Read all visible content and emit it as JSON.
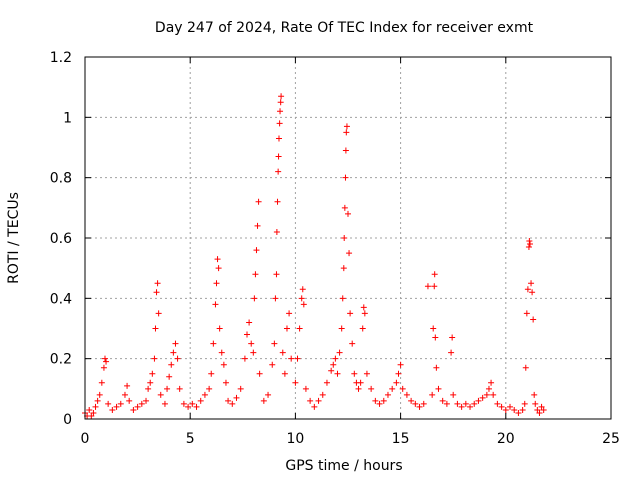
{
  "chart_data": {
    "type": "scatter",
    "title": "Day 247 of 2024, Rate Of TEC Index for receiver exmt",
    "xlabel": "GPS time / hours",
    "ylabel": "ROTI / TECUs",
    "xlim": [
      0,
      25
    ],
    "ylim": [
      0,
      1.2
    ],
    "x_ticks": [
      0,
      5,
      10,
      15,
      20,
      25
    ],
    "y_ticks": [
      0,
      0.2,
      0.4,
      0.6,
      0.8,
      1,
      1.2
    ],
    "x_tick_labels": [
      "0",
      "5",
      "10",
      "15",
      "20",
      "25"
    ],
    "y_tick_labels": [
      "0",
      "0.2",
      "0.4",
      "0.6",
      "0.8",
      "1",
      "1.2"
    ],
    "grid": true,
    "legend": "none",
    "marker": "plus",
    "color": "#ff0000",
    "series": [
      {
        "points": [
          [
            0.0,
            0.02
          ],
          [
            0.1,
            0.01
          ],
          [
            0.2,
            0.03
          ],
          [
            0.3,
            0.01
          ],
          [
            0.4,
            0.02
          ],
          [
            0.5,
            0.04
          ],
          [
            0.6,
            0.06
          ],
          [
            0.7,
            0.08
          ],
          [
            0.8,
            0.12
          ],
          [
            0.9,
            0.17
          ],
          [
            0.95,
            0.2
          ],
          [
            1.0,
            0.19
          ],
          [
            1.1,
            0.05
          ],
          [
            1.3,
            0.03
          ],
          [
            1.5,
            0.04
          ],
          [
            1.7,
            0.05
          ],
          [
            1.9,
            0.08
          ],
          [
            2.0,
            0.11
          ],
          [
            2.1,
            0.06
          ],
          [
            2.3,
            0.03
          ],
          [
            2.5,
            0.04
          ],
          [
            2.7,
            0.05
          ],
          [
            2.9,
            0.06
          ],
          [
            3.0,
            0.1
          ],
          [
            3.1,
            0.12
          ],
          [
            3.2,
            0.15
          ],
          [
            3.3,
            0.2
          ],
          [
            3.35,
            0.3
          ],
          [
            3.4,
            0.42
          ],
          [
            3.45,
            0.45
          ],
          [
            3.5,
            0.35
          ],
          [
            3.6,
            0.08
          ],
          [
            3.8,
            0.05
          ],
          [
            3.9,
            0.1
          ],
          [
            4.0,
            0.14
          ],
          [
            4.1,
            0.18
          ],
          [
            4.2,
            0.22
          ],
          [
            4.3,
            0.25
          ],
          [
            4.4,
            0.2
          ],
          [
            4.5,
            0.1
          ],
          [
            4.7,
            0.05
          ],
          [
            4.9,
            0.04
          ],
          [
            5.1,
            0.05
          ],
          [
            5.3,
            0.04
          ],
          [
            5.5,
            0.06
          ],
          [
            5.7,
            0.08
          ],
          [
            5.9,
            0.1
          ],
          [
            6.0,
            0.15
          ],
          [
            6.1,
            0.25
          ],
          [
            6.2,
            0.38
          ],
          [
            6.25,
            0.45
          ],
          [
            6.3,
            0.53
          ],
          [
            6.35,
            0.5
          ],
          [
            6.4,
            0.3
          ],
          [
            6.5,
            0.22
          ],
          [
            6.6,
            0.18
          ],
          [
            6.7,
            0.12
          ],
          [
            6.8,
            0.06
          ],
          [
            7.0,
            0.05
          ],
          [
            7.2,
            0.07
          ],
          [
            7.4,
            0.1
          ],
          [
            7.6,
            0.2
          ],
          [
            7.7,
            0.28
          ],
          [
            7.8,
            0.32
          ],
          [
            7.9,
            0.25
          ],
          [
            8.0,
            0.22
          ],
          [
            8.05,
            0.4
          ],
          [
            8.1,
            0.48
          ],
          [
            8.15,
            0.56
          ],
          [
            8.2,
            0.64
          ],
          [
            8.25,
            0.72
          ],
          [
            8.3,
            0.15
          ],
          [
            8.5,
            0.06
          ],
          [
            8.7,
            0.08
          ],
          [
            8.9,
            0.18
          ],
          [
            9.0,
            0.25
          ],
          [
            9.05,
            0.4
          ],
          [
            9.1,
            0.48
          ],
          [
            9.12,
            0.62
          ],
          [
            9.15,
            0.72
          ],
          [
            9.18,
            0.82
          ],
          [
            9.2,
            0.87
          ],
          [
            9.22,
            0.93
          ],
          [
            9.25,
            0.98
          ],
          [
            9.27,
            1.02
          ],
          [
            9.3,
            1.05
          ],
          [
            9.32,
            1.07
          ],
          [
            9.4,
            0.22
          ],
          [
            9.5,
            0.15
          ],
          [
            9.6,
            0.3
          ],
          [
            9.7,
            0.35
          ],
          [
            9.8,
            0.2
          ],
          [
            10.0,
            0.12
          ],
          [
            10.1,
            0.2
          ],
          [
            10.2,
            0.3
          ],
          [
            10.3,
            0.4
          ],
          [
            10.35,
            0.43
          ],
          [
            10.4,
            0.38
          ],
          [
            10.5,
            0.1
          ],
          [
            10.7,
            0.06
          ],
          [
            10.9,
            0.04
          ],
          [
            11.1,
            0.06
          ],
          [
            11.3,
            0.08
          ],
          [
            11.5,
            0.12
          ],
          [
            11.7,
            0.16
          ],
          [
            11.8,
            0.18
          ],
          [
            11.9,
            0.2
          ],
          [
            12.0,
            0.15
          ],
          [
            12.1,
            0.22
          ],
          [
            12.2,
            0.3
          ],
          [
            12.25,
            0.4
          ],
          [
            12.3,
            0.5
          ],
          [
            12.32,
            0.6
          ],
          [
            12.35,
            0.7
          ],
          [
            12.38,
            0.8
          ],
          [
            12.4,
            0.89
          ],
          [
            12.42,
            0.95
          ],
          [
            12.45,
            0.97
          ],
          [
            12.5,
            0.68
          ],
          [
            12.55,
            0.55
          ],
          [
            12.6,
            0.35
          ],
          [
            12.7,
            0.25
          ],
          [
            12.8,
            0.15
          ],
          [
            12.9,
            0.12
          ],
          [
            13.0,
            0.1
          ],
          [
            13.1,
            0.12
          ],
          [
            13.2,
            0.3
          ],
          [
            13.25,
            0.37
          ],
          [
            13.3,
            0.35
          ],
          [
            13.4,
            0.15
          ],
          [
            13.6,
            0.1
          ],
          [
            13.8,
            0.06
          ],
          [
            14.0,
            0.05
          ],
          [
            14.2,
            0.06
          ],
          [
            14.4,
            0.08
          ],
          [
            14.6,
            0.1
          ],
          [
            14.8,
            0.12
          ],
          [
            14.9,
            0.15
          ],
          [
            15.0,
            0.18
          ],
          [
            15.1,
            0.1
          ],
          [
            15.3,
            0.08
          ],
          [
            15.5,
            0.06
          ],
          [
            15.7,
            0.05
          ],
          [
            15.9,
            0.04
          ],
          [
            16.1,
            0.05
          ],
          [
            16.3,
            0.44
          ],
          [
            16.5,
            0.08
          ],
          [
            16.55,
            0.3
          ],
          [
            16.6,
            0.44
          ],
          [
            16.62,
            0.48
          ],
          [
            16.65,
            0.27
          ],
          [
            16.7,
            0.17
          ],
          [
            16.8,
            0.1
          ],
          [
            17.0,
            0.06
          ],
          [
            17.2,
            0.05
          ],
          [
            17.4,
            0.22
          ],
          [
            17.45,
            0.27
          ],
          [
            17.5,
            0.08
          ],
          [
            17.7,
            0.05
          ],
          [
            17.9,
            0.04
          ],
          [
            18.1,
            0.05
          ],
          [
            18.3,
            0.04
          ],
          [
            18.5,
            0.05
          ],
          [
            18.7,
            0.06
          ],
          [
            18.9,
            0.07
          ],
          [
            19.1,
            0.08
          ],
          [
            19.2,
            0.1
          ],
          [
            19.3,
            0.12
          ],
          [
            19.4,
            0.08
          ],
          [
            19.6,
            0.05
          ],
          [
            19.8,
            0.04
          ],
          [
            20.0,
            0.03
          ],
          [
            20.2,
            0.04
          ],
          [
            20.4,
            0.03
          ],
          [
            20.6,
            0.02
          ],
          [
            20.8,
            0.03
          ],
          [
            20.9,
            0.05
          ],
          [
            20.95,
            0.17
          ],
          [
            21.0,
            0.35
          ],
          [
            21.05,
            0.43
          ],
          [
            21.1,
            0.57
          ],
          [
            21.12,
            0.59
          ],
          [
            21.15,
            0.58
          ],
          [
            21.2,
            0.45
          ],
          [
            21.25,
            0.42
          ],
          [
            21.3,
            0.33
          ],
          [
            21.35,
            0.08
          ],
          [
            21.4,
            0.05
          ],
          [
            21.5,
            0.03
          ],
          [
            21.6,
            0.02
          ],
          [
            21.7,
            0.04
          ],
          [
            21.8,
            0.03
          ]
        ]
      }
    ]
  }
}
